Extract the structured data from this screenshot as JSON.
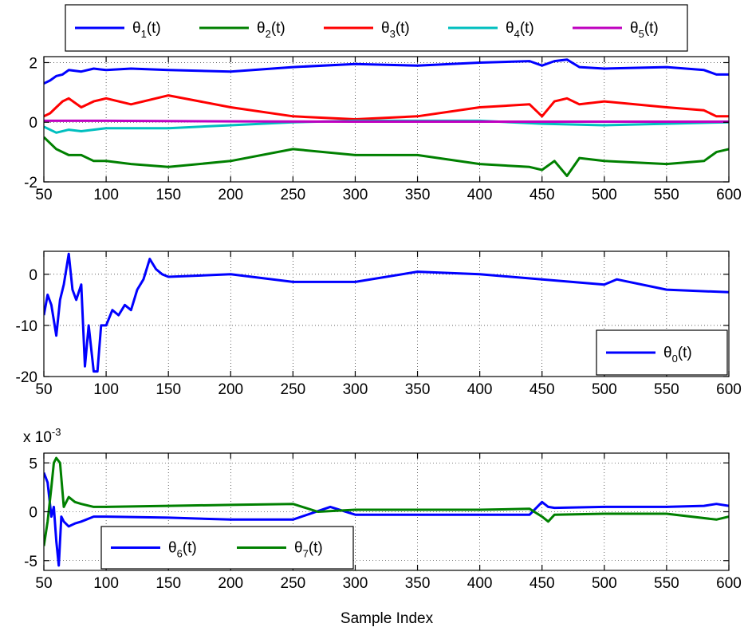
{
  "xlabel": "Sample Index",
  "chart_data": [
    {
      "type": "line",
      "title": "",
      "xlabel": "",
      "ylabel": "",
      "xlim": [
        50,
        600
      ],
      "ylim": [
        -2,
        2.2
      ],
      "xticks": [
        50,
        100,
        150,
        200,
        250,
        300,
        350,
        400,
        450,
        500,
        550,
        600
      ],
      "yticks": [
        -2,
        0,
        2
      ],
      "grid": true,
      "legend": {
        "placement": "top, above axes",
        "orientation": "horizontal"
      },
      "series": [
        {
          "name": "θ1(t)",
          "sym": "θ",
          "sub": "1",
          "suffix": "(t)",
          "color": "#0000ff",
          "x": [
            50,
            55,
            60,
            65,
            70,
            80,
            90,
            100,
            120,
            150,
            200,
            250,
            300,
            350,
            400,
            440,
            450,
            460,
            470,
            480,
            500,
            550,
            580,
            590,
            600
          ],
          "y": [
            1.3,
            1.4,
            1.55,
            1.6,
            1.75,
            1.7,
            1.8,
            1.75,
            1.8,
            1.75,
            1.7,
            1.85,
            1.95,
            1.9,
            2.0,
            2.05,
            1.9,
            2.05,
            2.1,
            1.85,
            1.8,
            1.85,
            1.75,
            1.6,
            1.6
          ]
        },
        {
          "name": "θ2(t)",
          "sym": "θ",
          "sub": "2",
          "suffix": "(t)",
          "color": "#008000",
          "x": [
            50,
            55,
            60,
            65,
            70,
            80,
            90,
            100,
            120,
            150,
            200,
            250,
            300,
            350,
            400,
            440,
            450,
            460,
            470,
            480,
            500,
            550,
            580,
            590,
            600
          ],
          "y": [
            -0.5,
            -0.7,
            -0.9,
            -1.0,
            -1.1,
            -1.1,
            -1.3,
            -1.3,
            -1.4,
            -1.5,
            -1.3,
            -0.9,
            -1.1,
            -1.1,
            -1.4,
            -1.5,
            -1.6,
            -1.3,
            -1.8,
            -1.2,
            -1.3,
            -1.4,
            -1.3,
            -1.0,
            -0.9
          ]
        },
        {
          "name": "θ3(t)",
          "sym": "θ",
          "sub": "3",
          "suffix": "(t)",
          "color": "#ff0000",
          "x": [
            50,
            55,
            60,
            65,
            70,
            80,
            90,
            100,
            120,
            150,
            200,
            250,
            300,
            350,
            400,
            440,
            450,
            460,
            470,
            480,
            500,
            550,
            580,
            590,
            600
          ],
          "y": [
            0.2,
            0.3,
            0.5,
            0.7,
            0.8,
            0.5,
            0.7,
            0.8,
            0.6,
            0.9,
            0.5,
            0.2,
            0.1,
            0.2,
            0.5,
            0.6,
            0.2,
            0.7,
            0.8,
            0.6,
            0.7,
            0.5,
            0.4,
            0.2,
            0.2
          ]
        },
        {
          "name": "θ4(t)",
          "sym": "θ",
          "sub": "4",
          "suffix": "(t)",
          "color": "#00bfbf",
          "x": [
            50,
            60,
            70,
            80,
            100,
            150,
            200,
            250,
            300,
            350,
            400,
            450,
            500,
            550,
            600
          ],
          "y": [
            -0.15,
            -0.35,
            -0.25,
            -0.3,
            -0.2,
            -0.2,
            -0.1,
            0.0,
            0.05,
            0.05,
            0.05,
            -0.05,
            -0.1,
            -0.05,
            0.0
          ]
        },
        {
          "name": "θ5(t)",
          "sym": "θ",
          "sub": "5",
          "suffix": "(t)",
          "color": "#bf00bf",
          "x": [
            50,
            100,
            200,
            300,
            400,
            500,
            600
          ],
          "y": [
            0.05,
            0.05,
            0.03,
            0.02,
            0.02,
            0.02,
            0.02
          ]
        }
      ]
    },
    {
      "type": "line",
      "title": "",
      "xlabel": "",
      "ylabel": "",
      "xlim": [
        50,
        600
      ],
      "ylim": [
        -20,
        4.5
      ],
      "xticks": [
        50,
        100,
        150,
        200,
        250,
        300,
        350,
        400,
        450,
        500,
        550,
        600
      ],
      "yticks": [
        -20,
        -10,
        0
      ],
      "grid": true,
      "legend": {
        "placement": "bottom-right"
      },
      "series": [
        {
          "name": "θ0(t)",
          "sym": "θ",
          "sub": "0",
          "suffix": "(t)",
          "color": "#0000ff",
          "x": [
            50,
            53,
            56,
            60,
            63,
            66,
            70,
            73,
            76,
            80,
            83,
            86,
            90,
            93,
            96,
            100,
            105,
            110,
            115,
            120,
            125,
            130,
            135,
            140,
            145,
            150,
            200,
            250,
            300,
            350,
            400,
            450,
            500,
            510,
            550,
            600
          ],
          "y": [
            -8,
            -4,
            -6,
            -12,
            -5,
            -2,
            4,
            -3,
            -5,
            -2,
            -18,
            -10,
            -19,
            -19,
            -10,
            -10,
            -7,
            -8,
            -6,
            -7,
            -3,
            -1,
            3,
            1,
            0,
            -0.5,
            0,
            -1.5,
            -1.5,
            0.5,
            0,
            -1,
            -2,
            -1,
            -3,
            -3.5
          ]
        }
      ]
    },
    {
      "type": "line",
      "title": "",
      "xlabel": "Sample Index",
      "ylabel": "",
      "scale_label": "x 10",
      "scale_exponent": "-3",
      "xlim": [
        50,
        600
      ],
      "ylim": [
        -6,
        6
      ],
      "xticks": [
        50,
        100,
        150,
        200,
        250,
        300,
        350,
        400,
        450,
        500,
        550,
        600
      ],
      "yticks": [
        -5,
        0,
        5
      ],
      "grid": true,
      "legend": {
        "placement": "bottom-left",
        "orientation": "horizontal"
      },
      "series": [
        {
          "name": "θ6(t)",
          "sym": "θ",
          "sub": "6",
          "suffix": "(t)",
          "color": "#0000ff",
          "x": [
            50,
            53,
            56,
            58,
            60,
            62,
            64,
            66,
            70,
            75,
            80,
            90,
            100,
            150,
            200,
            250,
            280,
            300,
            350,
            400,
            440,
            450,
            455,
            460,
            500,
            550,
            580,
            590,
            600
          ],
          "y": [
            4,
            3,
            -0.5,
            0.5,
            -3,
            -5.5,
            -0.5,
            -1,
            -1.5,
            -1.2,
            -1,
            -0.5,
            -0.5,
            -0.6,
            -0.8,
            -0.8,
            0.5,
            -0.3,
            -0.3,
            -0.3,
            -0.3,
            1,
            0.5,
            0.4,
            0.5,
            0.5,
            0.6,
            0.8,
            0.6
          ]
        },
        {
          "name": "θ7(t)",
          "sym": "θ",
          "sub": "7",
          "suffix": "(t)",
          "color": "#008000",
          "x": [
            50,
            53,
            56,
            58,
            60,
            63,
            66,
            70,
            75,
            80,
            90,
            100,
            150,
            200,
            250,
            270,
            300,
            350,
            400,
            440,
            450,
            455,
            460,
            500,
            550,
            590,
            600
          ],
          "y": [
            -3.5,
            -1,
            2.5,
            5,
            5.5,
            5,
            0.5,
            1.5,
            1,
            0.8,
            0.5,
            0.5,
            0.6,
            0.7,
            0.8,
            0,
            0.2,
            0.2,
            0.2,
            0.3,
            -0.5,
            -1,
            -0.3,
            -0.2,
            -0.2,
            -0.8,
            -0.5
          ]
        }
      ]
    }
  ]
}
